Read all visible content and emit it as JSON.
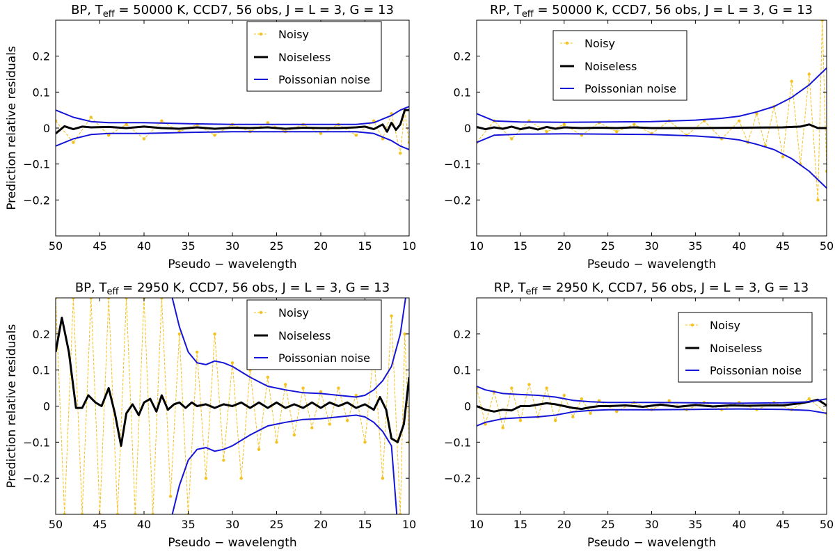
{
  "colors": {
    "noisy": "#f4c21f",
    "noiseless": "#000000",
    "poisson": "#1515d8"
  },
  "chart_data": [
    {
      "type": "line",
      "title_prefix": "BP,  T",
      "title_sub": "eff",
      "title_suffix": " = 50000 K,  CCD7,  56 obs,  J = L = 3,  G = 13",
      "xlabel": "Pseudo − wavelength",
      "ylabel": "Prediction relative residuals",
      "xlim": [
        50,
        10
      ],
      "ylim": [
        -0.3,
        0.3
      ],
      "xticks": [
        "50",
        "45",
        "40",
        "35",
        "30",
        "25",
        "20",
        "15",
        "10"
      ],
      "yticks": [
        "0.2",
        "0.1",
        "0",
        "−0.1",
        "−0.2"
      ],
      "legend": [
        "Noisy",
        "Noiseless",
        "Poissonian noise"
      ],
      "legend_loc": "top-right",
      "series": [
        {
          "name": "Noisy",
          "x": [
            50,
            48,
            46,
            44,
            42,
            40,
            38,
            36,
            34,
            32,
            30,
            28,
            26,
            24,
            22,
            20,
            18,
            16,
            14,
            13,
            12,
            11,
            10.5,
            10
          ],
          "values": [
            0.02,
            -0.04,
            0.03,
            -0.02,
            0.01,
            -0.03,
            0.02,
            -0.01,
            0.01,
            -0.02,
            0.01,
            -0.01,
            0.015,
            -0.01,
            0.01,
            -0.015,
            0.01,
            -0.02,
            0.02,
            -0.03,
            0.04,
            -0.07,
            0.05,
            -0.04
          ]
        },
        {
          "name": "Noiseless",
          "x": [
            50,
            49,
            48,
            47,
            46,
            44,
            42,
            40,
            38,
            36,
            34,
            32,
            30,
            28,
            26,
            24,
            22,
            20,
            18,
            16,
            15,
            14,
            13,
            12.5,
            12,
            11.5,
            11,
            10.5,
            10
          ],
          "values": [
            -0.015,
            0.005,
            -0.003,
            0.004,
            0.002,
            0.003,
            0.0,
            0.004,
            0.0,
            -0.002,
            0.002,
            -0.002,
            0.001,
            0.0,
            0.002,
            -0.002,
            0.001,
            0.0,
            0.0,
            0.002,
            0.004,
            -0.003,
            0.01,
            -0.01,
            0.015,
            -0.005,
            0.01,
            0.05,
            0.05
          ]
        },
        {
          "name": "Poissonian noise upper",
          "x": [
            50,
            48,
            46,
            44,
            40,
            35,
            30,
            25,
            20,
            16,
            14,
            13,
            12,
            11,
            10
          ],
          "values": [
            0.05,
            0.03,
            0.018,
            0.015,
            0.015,
            0.012,
            0.01,
            0.01,
            0.01,
            0.01,
            0.015,
            0.025,
            0.035,
            0.05,
            0.06
          ]
        },
        {
          "name": "Poissonian noise lower",
          "x": [
            50,
            48,
            46,
            44,
            40,
            35,
            30,
            25,
            20,
            16,
            14,
            13,
            12,
            11,
            10
          ],
          "values": [
            -0.05,
            -0.03,
            -0.018,
            -0.015,
            -0.015,
            -0.012,
            -0.01,
            -0.01,
            -0.01,
            -0.01,
            -0.015,
            -0.025,
            -0.035,
            -0.05,
            -0.06
          ]
        }
      ]
    },
    {
      "type": "line",
      "title_prefix": "RP,  T",
      "title_sub": "eff",
      "title_suffix": " = 50000 K,  CCD7,  56 obs,  J = L = 3,  G = 13",
      "xlabel": "Pseudo − wavelength",
      "ylabel": "",
      "xlim": [
        10,
        50
      ],
      "ylim": [
        -0.3,
        0.3
      ],
      "xticks": [
        "10",
        "15",
        "20",
        "25",
        "30",
        "35",
        "40",
        "45",
        "50"
      ],
      "yticks": [
        "0.2",
        "0.1",
        "0",
        "−0.1",
        "−0.2"
      ],
      "legend": [
        "Noisy",
        "Noiseless",
        "Poissonian noise"
      ],
      "legend_loc": "top-center",
      "series": [
        {
          "name": "Noisy",
          "x": [
            10,
            12,
            14,
            16,
            18,
            20,
            22,
            24,
            26,
            28,
            30,
            32,
            34,
            36,
            38,
            40,
            41,
            42,
            43,
            44,
            45,
            46,
            47,
            48,
            49,
            49.5,
            50
          ],
          "values": [
            -0.04,
            0.02,
            -0.03,
            0.02,
            -0.01,
            0.01,
            -0.02,
            0.015,
            -0.01,
            0.01,
            -0.015,
            0.02,
            -0.02,
            0.02,
            -0.03,
            0.02,
            -0.04,
            0.04,
            -0.05,
            0.06,
            -0.08,
            0.13,
            -0.1,
            0.15,
            -0.2,
            0.3,
            -0.12
          ]
        },
        {
          "name": "Noiseless",
          "x": [
            10,
            11,
            12,
            13,
            14,
            15,
            16,
            17,
            18,
            19,
            20,
            22,
            24,
            26,
            28,
            30,
            35,
            40,
            45,
            47,
            48,
            49,
            50
          ],
          "values": [
            0.003,
            -0.003,
            0.002,
            -0.002,
            0.004,
            -0.003,
            0.002,
            -0.004,
            0.003,
            -0.002,
            0.002,
            0.0,
            0.001,
            0.0,
            0.002,
            0.0,
            0.0,
            0.001,
            0.002,
            0.004,
            0.01,
            0.0,
            0.0
          ]
        },
        {
          "name": "Poissonian noise upper",
          "x": [
            10,
            12,
            15,
            20,
            25,
            30,
            35,
            38,
            40,
            42,
            44,
            46,
            48,
            50
          ],
          "values": [
            0.04,
            0.02,
            0.017,
            0.016,
            0.017,
            0.018,
            0.022,
            0.027,
            0.033,
            0.045,
            0.06,
            0.085,
            0.12,
            0.167
          ]
        },
        {
          "name": "Poissonian noise lower",
          "x": [
            10,
            12,
            15,
            20,
            25,
            30,
            35,
            38,
            40,
            42,
            44,
            46,
            48,
            50
          ],
          "values": [
            -0.04,
            -0.02,
            -0.017,
            -0.016,
            -0.017,
            -0.018,
            -0.022,
            -0.027,
            -0.033,
            -0.045,
            -0.06,
            -0.085,
            -0.12,
            -0.167
          ]
        }
      ]
    },
    {
      "type": "line",
      "title_prefix": "BP,  T",
      "title_sub": "eff",
      "title_suffix": " = 2950 K,  CCD7,  56 obs,  J = L = 3,  G = 13",
      "xlabel": "Pseudo − wavelength",
      "ylabel": "Prediction relative residuals",
      "xlim": [
        50,
        10
      ],
      "ylim": [
        -0.3,
        0.3
      ],
      "xticks": [
        "50",
        "45",
        "40",
        "35",
        "30",
        "25",
        "20",
        "15",
        "10"
      ],
      "yticks": [
        "0.2",
        "0.1",
        "0",
        "−0.1",
        "−0.2"
      ],
      "legend": [
        "Noisy",
        "Noiseless",
        "Poissonian noise"
      ],
      "legend_loc": "top-right",
      "series": [
        {
          "name": "Noisy",
          "x": [
            50,
            49,
            48,
            47,
            46,
            45,
            44,
            43,
            42,
            41,
            40,
            39,
            38,
            37,
            36,
            35,
            34,
            33,
            32,
            31,
            30,
            29,
            28,
            27,
            26,
            25,
            24,
            23,
            22,
            21,
            20,
            19,
            18,
            17,
            16,
            15,
            14,
            13,
            12,
            11,
            10.5,
            10
          ],
          "values": [
            0.3,
            -0.3,
            0.3,
            -0.3,
            0.3,
            -0.3,
            0.3,
            -0.3,
            0.3,
            -0.3,
            0.3,
            -0.3,
            0.3,
            -0.25,
            0.2,
            -0.3,
            0.15,
            -0.2,
            0.2,
            -0.15,
            0.12,
            -0.2,
            0.1,
            -0.12,
            0.08,
            -0.1,
            0.06,
            -0.08,
            0.05,
            -0.06,
            0.04,
            -0.05,
            0.05,
            -0.04,
            0.03,
            -0.1,
            0.15,
            -0.2,
            0.25,
            -0.3,
            0.2,
            -0.1
          ]
        },
        {
          "name": "Noiseless",
          "x": [
            50,
            49.3,
            48.5,
            47.7,
            47,
            46.3,
            45.5,
            44.8,
            44,
            43.3,
            42.6,
            42,
            41.3,
            40.6,
            40,
            39.3,
            38.6,
            38,
            37.3,
            36.6,
            36,
            35.3,
            34.6,
            34,
            33,
            32,
            31,
            30,
            29,
            28,
            27,
            26,
            25,
            24,
            23,
            22,
            21,
            20,
            19,
            18,
            17,
            16,
            15,
            14,
            13.3,
            12.6,
            12,
            11.3,
            10.6,
            10
          ],
          "values": [
            0.15,
            0.245,
            0.15,
            -0.005,
            -0.005,
            0.03,
            0.01,
            0.0,
            0.05,
            -0.02,
            -0.11,
            -0.02,
            0.005,
            -0.025,
            0.01,
            0.02,
            -0.015,
            0.03,
            -0.01,
            0.005,
            0.01,
            -0.005,
            0.01,
            0.0,
            0.005,
            -0.005,
            0.005,
            0.0,
            0.01,
            -0.005,
            0.01,
            -0.005,
            0.01,
            -0.005,
            0.005,
            -0.005,
            0.01,
            -0.005,
            0.01,
            0.0,
            0.01,
            -0.005,
            0.005,
            -0.01,
            0.025,
            -0.01,
            -0.09,
            -0.1,
            -0.05,
            0.08
          ]
        },
        {
          "name": "Poissonian noise upper",
          "x": [
            36.8,
            36,
            35,
            34,
            33,
            32,
            31,
            30,
            28,
            26,
            24,
            22,
            20,
            18,
            16,
            15,
            14,
            13,
            12,
            11,
            10.4
          ],
          "values": [
            0.3,
            0.22,
            0.15,
            0.12,
            0.115,
            0.125,
            0.12,
            0.11,
            0.08,
            0.055,
            0.045,
            0.037,
            0.035,
            0.03,
            0.025,
            0.03,
            0.045,
            0.07,
            0.11,
            0.2,
            0.3
          ]
        },
        {
          "name": "Poissonian noise lower",
          "x": [
            36.8,
            36,
            35,
            34,
            33,
            32,
            31,
            30,
            28,
            26,
            24,
            22,
            20,
            18,
            16,
            15,
            14,
            13,
            12,
            11.4
          ],
          "values": [
            -0.3,
            -0.22,
            -0.15,
            -0.12,
            -0.115,
            -0.125,
            -0.12,
            -0.11,
            -0.08,
            -0.055,
            -0.045,
            -0.037,
            -0.035,
            -0.03,
            -0.025,
            -0.03,
            -0.045,
            -0.07,
            -0.11,
            -0.3
          ]
        }
      ]
    },
    {
      "type": "line",
      "title_prefix": "RP,  T",
      "title_sub": "eff",
      "title_suffix": " = 2950 K,  CCD7,  56 obs,  J = L = 3,  G = 13",
      "xlabel": "Pseudo − wavelength",
      "ylabel": "",
      "xlim": [
        10,
        50
      ],
      "ylim": [
        -0.3,
        0.3
      ],
      "xticks": [
        "10",
        "15",
        "20",
        "25",
        "30",
        "35",
        "40",
        "45",
        "50"
      ],
      "yticks": [
        "0.2",
        "0.1",
        "0",
        "−0.1",
        "−0.2"
      ],
      "legend": [
        "Noisy",
        "Noiseless",
        "Poissonian noise"
      ],
      "legend_loc": "top-right",
      "series": [
        {
          "name": "Noisy",
          "x": [
            10,
            11,
            12,
            13,
            14,
            15,
            16,
            17,
            18,
            19,
            20,
            21,
            22,
            23,
            24,
            26,
            28,
            30,
            32,
            34,
            36,
            38,
            40,
            42,
            44,
            46,
            48,
            50
          ],
          "values": [
            0.05,
            -0.05,
            0.04,
            -0.06,
            0.05,
            -0.04,
            0.06,
            -0.03,
            0.05,
            -0.04,
            0.03,
            -0.03,
            0.02,
            -0.02,
            0.015,
            -0.015,
            0.01,
            -0.01,
            0.015,
            -0.01,
            0.01,
            -0.01,
            0.01,
            -0.01,
            0.01,
            -0.01,
            0.02,
            -0.02
          ]
        },
        {
          "name": "Noiseless",
          "x": [
            10,
            11,
            12,
            13,
            14,
            15,
            16,
            17,
            18,
            19,
            20,
            21,
            22,
            23,
            24,
            25,
            27,
            29,
            31,
            33,
            35,
            37,
            39,
            41,
            43,
            45,
            47,
            48,
            49,
            50
          ],
          "values": [
            0.0,
            -0.01,
            -0.015,
            -0.01,
            -0.012,
            0.0,
            0.0,
            0.004,
            0.008,
            0.005,
            0.0,
            -0.005,
            -0.008,
            -0.003,
            0.0,
            0.0,
            0.002,
            -0.002,
            0.004,
            -0.002,
            0.003,
            -0.001,
            0.002,
            0.001,
            0.002,
            0.002,
            0.008,
            0.012,
            0.018,
            0.002
          ]
        },
        {
          "name": "Poissonian noise upper",
          "x": [
            10,
            11,
            13,
            15,
            17,
            19,
            21,
            23,
            25,
            30,
            35,
            40,
            45,
            48,
            50
          ],
          "values": [
            0.055,
            0.045,
            0.035,
            0.032,
            0.03,
            0.025,
            0.016,
            0.012,
            0.01,
            0.01,
            0.009,
            0.008,
            0.009,
            0.012,
            0.02
          ]
        },
        {
          "name": "Poissonian noise lower",
          "x": [
            10,
            11,
            13,
            15,
            17,
            19,
            21,
            23,
            25,
            30,
            35,
            40,
            45,
            48,
            50
          ],
          "values": [
            -0.055,
            -0.045,
            -0.035,
            -0.032,
            -0.03,
            -0.025,
            -0.016,
            -0.012,
            -0.01,
            -0.01,
            -0.009,
            -0.008,
            -0.009,
            -0.012,
            -0.02
          ]
        }
      ]
    }
  ]
}
